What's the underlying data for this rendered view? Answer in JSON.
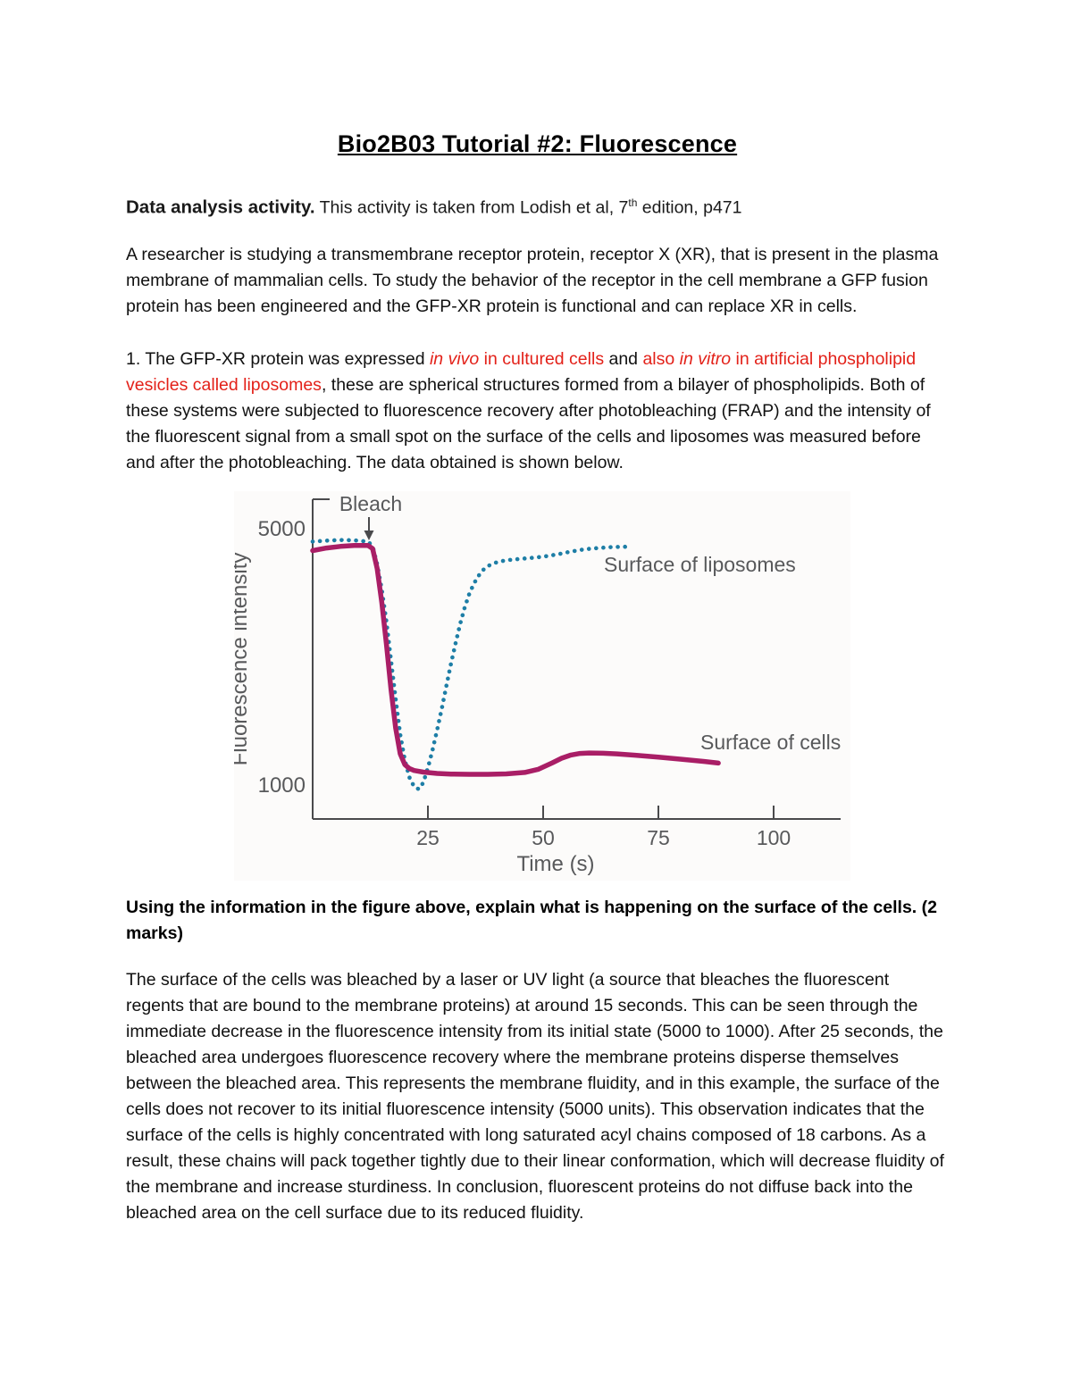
{
  "page": {
    "title": "Bio2B03 Tutorial #2: Fluorescence"
  },
  "intro": {
    "label": "Data analysis activity.",
    "text_before_sup": " This activity is taken from Lodish et al, 7",
    "sup": "th",
    "text_after_sup": " edition, p471"
  },
  "paragraph1": "A researcher is studying a transmembrane receptor protein, receptor X (XR), that is present in the plasma membrane of mammalian cells. To study the behavior of the receptor in the cell membrane a GFP fusion protein has been engineered and the GFP-XR protein is functional and can replace XR in cells.",
  "question1": {
    "segments": [
      {
        "text": "1. The GFP-XR protein was expressed ",
        "style": "plain"
      },
      {
        "text": "in vivo",
        "style": "red-italic"
      },
      {
        "text": " in cultured cells ",
        "style": "red"
      },
      {
        "text": "and ",
        "style": "plain"
      },
      {
        "text": "also ",
        "style": "red"
      },
      {
        "text": "in vitro",
        "style": "red-italic"
      },
      {
        "text": " in artificial phospholipid vesicles called liposomes",
        "style": "red"
      },
      {
        "text": ", these are spherical structures formed from a bilayer of phospholipids. Both of these systems were subjected to fluorescence recovery after photobleaching (FRAP) and the intensity of the fluorescent signal from a small spot on the surface of the cells and liposomes was measured before and after the photobleaching. The data obtained is shown below.",
        "style": "plain"
      }
    ]
  },
  "prompt": "Using the information in the figure above, explain what is happening on the surface of the cells. (2 marks)",
  "answer": "The surface of the cells was bleached by a laser or UV light (a source that bleaches the fluorescent regents that are bound to the membrane proteins) at around 15 seconds. This can be seen through the immediate decrease in the fluorescence intensity from its initial state (5000 to 1000). After 25 seconds, the bleached area undergoes fluorescence recovery where the membrane proteins disperse themselves between the bleached area. This represents the membrane fluidity, and in this example, the surface of the cells does not recover to its initial fluorescence intensity (5000 units). This observation indicates that the surface of the cells is highly concentrated with long saturated acyl chains composed of 18 carbons. As a result, these chains will pack together tightly due to their linear conformation, which will decrease fluidity of the membrane and increase sturdiness. In conclusion, fluorescent proteins do not diffuse back into the bleached area on the cell surface due to its reduced fluidity.",
  "colors": {
    "red_text": "#e32119",
    "liposomes_series": "#1e7ea6",
    "cells_series": "#a91e66",
    "chart_text": "#58595b",
    "axis": "#4a4a4c"
  },
  "chart_data": {
    "type": "line",
    "title": "",
    "xlabel": "Time (s)",
    "ylabel": "Fluorescence intensity",
    "x_ticks": [
      25,
      50,
      75,
      100
    ],
    "y_tick_labels": [
      "5000",
      "1000"
    ],
    "xlim": [
      0,
      115
    ],
    "ylim": [
      700,
      5400
    ],
    "grid": false,
    "legend_position": "inline-labels",
    "bleach_label": "Bleach",
    "bleach_time_s": 13,
    "series": [
      {
        "name": "Surface of liposomes",
        "style": "dotted",
        "color": "#1e7ea6",
        "points": [
          [
            0,
            4800
          ],
          [
            3,
            4815
          ],
          [
            6,
            4825
          ],
          [
            9,
            4820
          ],
          [
            12,
            4800
          ],
          [
            13,
            4730
          ],
          [
            14,
            4450
          ],
          [
            15,
            4050
          ],
          [
            16,
            3550
          ],
          [
            17,
            2950
          ],
          [
            18,
            2350
          ],
          [
            19,
            1800
          ],
          [
            20,
            1400
          ],
          [
            21,
            1130
          ],
          [
            22,
            990
          ],
          [
            23,
            950
          ],
          [
            24,
            1050
          ],
          [
            25,
            1280
          ],
          [
            26,
            1560
          ],
          [
            27,
            1870
          ],
          [
            28,
            2200
          ],
          [
            29,
            2550
          ],
          [
            30,
            2900
          ],
          [
            31,
            3220
          ],
          [
            32,
            3520
          ],
          [
            33,
            3780
          ],
          [
            34,
            3990
          ],
          [
            35,
            4150
          ],
          [
            36,
            4270
          ],
          [
            37,
            4360
          ],
          [
            38,
            4420
          ],
          [
            40,
            4480
          ],
          [
            42,
            4510
          ],
          [
            45,
            4530
          ],
          [
            48,
            4550
          ],
          [
            50,
            4565
          ],
          [
            53,
            4600
          ],
          [
            56,
            4645
          ],
          [
            59,
            4680
          ],
          [
            62,
            4700
          ],
          [
            65,
            4715
          ],
          [
            68,
            4720
          ]
        ]
      },
      {
        "name": "Surface of cells",
        "style": "solid",
        "color": "#a91e66",
        "points": [
          [
            0,
            4660
          ],
          [
            3,
            4700
          ],
          [
            6,
            4725
          ],
          [
            9,
            4740
          ],
          [
            12,
            4740
          ],
          [
            13,
            4690
          ],
          [
            14,
            4380
          ],
          [
            15,
            3850
          ],
          [
            16,
            3200
          ],
          [
            17,
            2500
          ],
          [
            18,
            1900
          ],
          [
            19,
            1500
          ],
          [
            20,
            1330
          ],
          [
            21,
            1270
          ],
          [
            22,
            1240
          ],
          [
            24,
            1215
          ],
          [
            27,
            1195
          ],
          [
            30,
            1185
          ],
          [
            34,
            1180
          ],
          [
            38,
            1180
          ],
          [
            42,
            1188
          ],
          [
            46,
            1210
          ],
          [
            49,
            1260
          ],
          [
            52,
            1360
          ],
          [
            54,
            1430
          ],
          [
            56,
            1480
          ],
          [
            58,
            1505
          ],
          [
            60,
            1512
          ],
          [
            63,
            1508
          ],
          [
            66,
            1498
          ],
          [
            70,
            1478
          ],
          [
            75,
            1448
          ],
          [
            80,
            1415
          ],
          [
            85,
            1380
          ],
          [
            88,
            1355
          ]
        ]
      }
    ]
  }
}
